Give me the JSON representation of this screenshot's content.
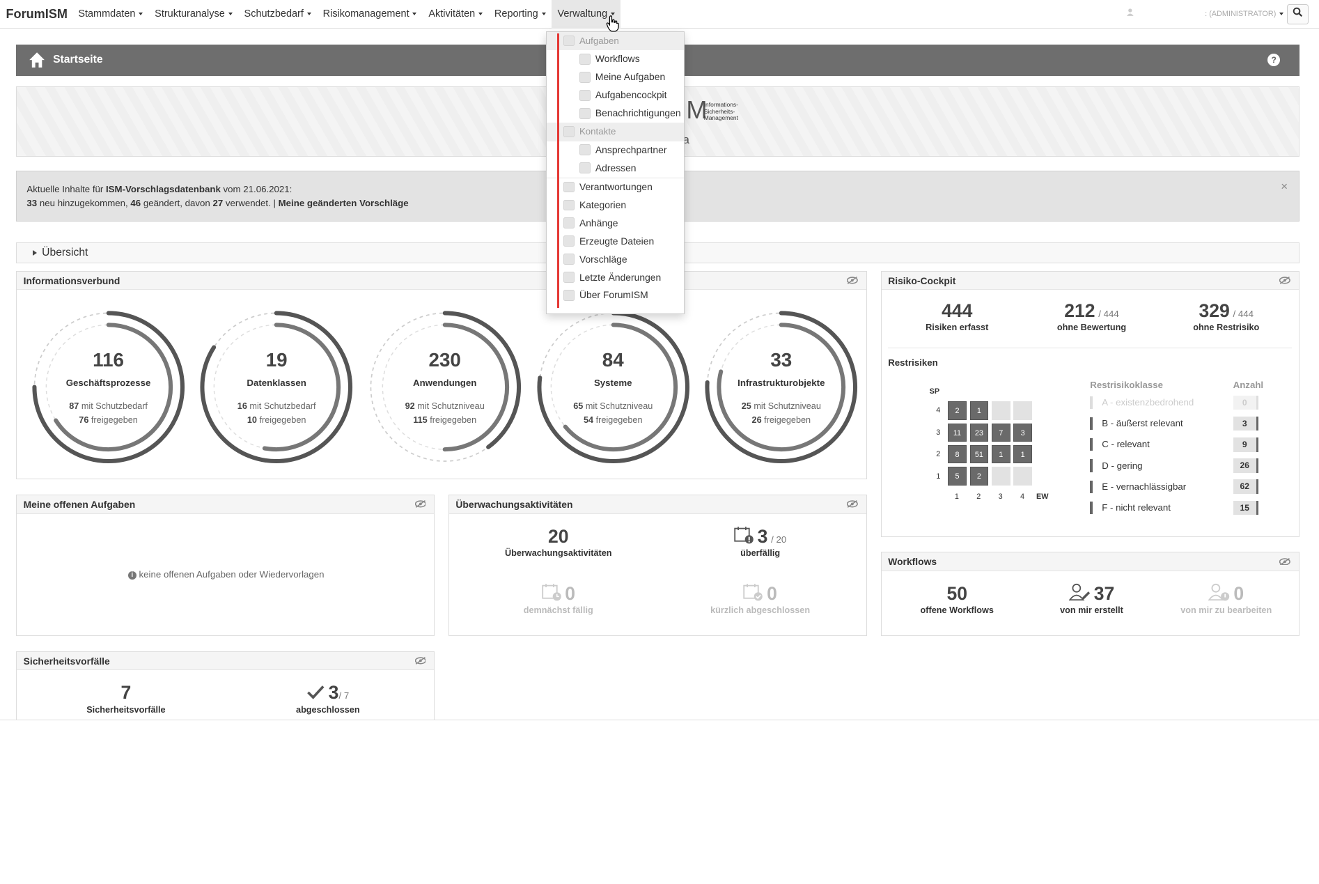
{
  "nav": {
    "brand": "ForumISM",
    "items": [
      "Stammdaten",
      "Strukturanalyse",
      "Schutzbedarf",
      "Risikomanagement",
      "Aktivitäten",
      "Reporting",
      "Verwaltung"
    ],
    "user_role": ": (ADMINISTRATOR)"
  },
  "page": {
    "title": "Startseite",
    "help": "?"
  },
  "banner": {
    "logo_letter": "M",
    "logo_sub": "Informations-\nSicherheits-\nManagement",
    "logo_frag": "a"
  },
  "alert": {
    "line1_a": "Aktuelle Inhalte für ",
    "line1_b": "ISM-Vorschlagsdatenbank",
    "line1_c": " vom 21.06.2021:",
    "new": "33",
    "new_lbl": " neu hinzugekommen, ",
    "changed": "46",
    "changed_lbl": " geändert, davon ",
    "used": "27",
    "used_lbl": " verwendet. | ",
    "link": "Meine geänderten Vorschläge",
    "close": "×"
  },
  "overview": {
    "label": "Übersicht"
  },
  "infoverbund": {
    "title": "Informationsverbund",
    "rings": [
      {
        "value": "116",
        "label": "Geschäftsprozesse",
        "line1_n": "87",
        "line1_t": " mit Schutzbedarf",
        "line2_n": "76",
        "line2_t": " freigegeben",
        "f1": 0.75,
        "f2": 0.66
      },
      {
        "value": "19",
        "label": "Datenklassen",
        "line1_n": "16",
        "line1_t": " mit Schutzbedarf",
        "line2_n": "10",
        "line2_t": " freigegeben",
        "f1": 0.84,
        "f2": 0.53
      },
      {
        "value": "230",
        "label": "Anwendungen",
        "line1_n": "92",
        "line1_t": " mit Schutzniveau",
        "line2_n": "115",
        "line2_t": " freigegeben",
        "f1": 0.4,
        "f2": 0.5
      },
      {
        "value": "84",
        "label": "Systeme",
        "line1_n": "65",
        "line1_t": " mit Schutzniveau",
        "line2_n": "54",
        "line2_t": " freigegeben",
        "f1": 0.77,
        "f2": 0.64
      },
      {
        "value": "33",
        "label": "Infrastrukturobjekte",
        "line1_n": "25",
        "line1_t": " mit Schutzniveau",
        "line2_n": "26",
        "line2_t": " freigegeben",
        "f1": 0.76,
        "f2": 0.79
      }
    ]
  },
  "risk": {
    "title": "Risiko-Cockpit",
    "erfasst": "444",
    "erfasst_lbl": "Risiken erfasst",
    "ohne_bew": "212",
    "ohne_bew_total": "/ 444",
    "ohne_bew_lbl": "ohne Bewertung",
    "ohne_rest": "329",
    "ohne_rest_total": "/ 444",
    "ohne_rest_lbl": "ohne Restrisiko",
    "rest_title": "Restrisiken",
    "sp": "SP",
    "ew": "EW",
    "rows": [
      "4",
      "3",
      "2",
      "1"
    ],
    "cols": [
      "1",
      "2",
      "3",
      "4"
    ],
    "grid": [
      [
        "2",
        "1",
        "",
        ""
      ],
      [
        "11",
        "23",
        "7",
        "3"
      ],
      [
        "8",
        "51",
        "1",
        "1"
      ],
      [
        "5",
        "2",
        "",
        ""
      ]
    ],
    "class_hdr": "Restrisikoklasse",
    "count_hdr": "Anzahl",
    "classes": [
      {
        "name": "A - existenzbedrohend",
        "count": "0"
      },
      {
        "name": "B - äußerst relevant",
        "count": "3"
      },
      {
        "name": "C - relevant",
        "count": "9"
      },
      {
        "name": "D - gering",
        "count": "26"
      },
      {
        "name": "E - vernachlässigbar",
        "count": "62"
      },
      {
        "name": "F - nicht relevant",
        "count": "15"
      }
    ]
  },
  "tasks": {
    "title": "Meine offenen Aufgaben",
    "empty": "keine offenen Aufgaben oder Wiedervorlagen"
  },
  "monitor": {
    "title": "Überwachungsaktivitäten",
    "total": "20",
    "total_lbl": "Überwachungsaktivitäten",
    "overdue": "3",
    "overdue_total": "/ 20",
    "overdue_lbl": "überfällig",
    "soon": "0",
    "soon_lbl": "demnächst fällig",
    "closed": "0",
    "closed_lbl": "kürzlich abgeschlossen"
  },
  "workflows": {
    "title": "Workflows",
    "open": "50",
    "open_lbl": "offene Workflows",
    "mine": "37",
    "mine_lbl": "von mir erstellt",
    "todo": "0",
    "todo_lbl": "von mir zu bearbeiten"
  },
  "incidents": {
    "title": "Sicherheitsvorfälle",
    "total": "7",
    "total_lbl": "Sicherheitsvorfälle",
    "done": "3",
    "done_total": "/ 7",
    "done_lbl": "abgeschlossen"
  },
  "dropdown": {
    "hdr1": "Aufgaben",
    "sub1": [
      "Workflows",
      "Meine Aufgaben",
      "Aufgabencockpit",
      "Benachrichtigungen"
    ],
    "hdr2": "Kontakte",
    "sub2": [
      "Ansprechpartner",
      "Adressen"
    ],
    "items": [
      "Verantwortungen",
      "Kategorien",
      "Anhänge",
      "Erzeugte Dateien",
      "Vorschläge",
      "Letzte Änderungen",
      "Über ForumISM"
    ]
  }
}
